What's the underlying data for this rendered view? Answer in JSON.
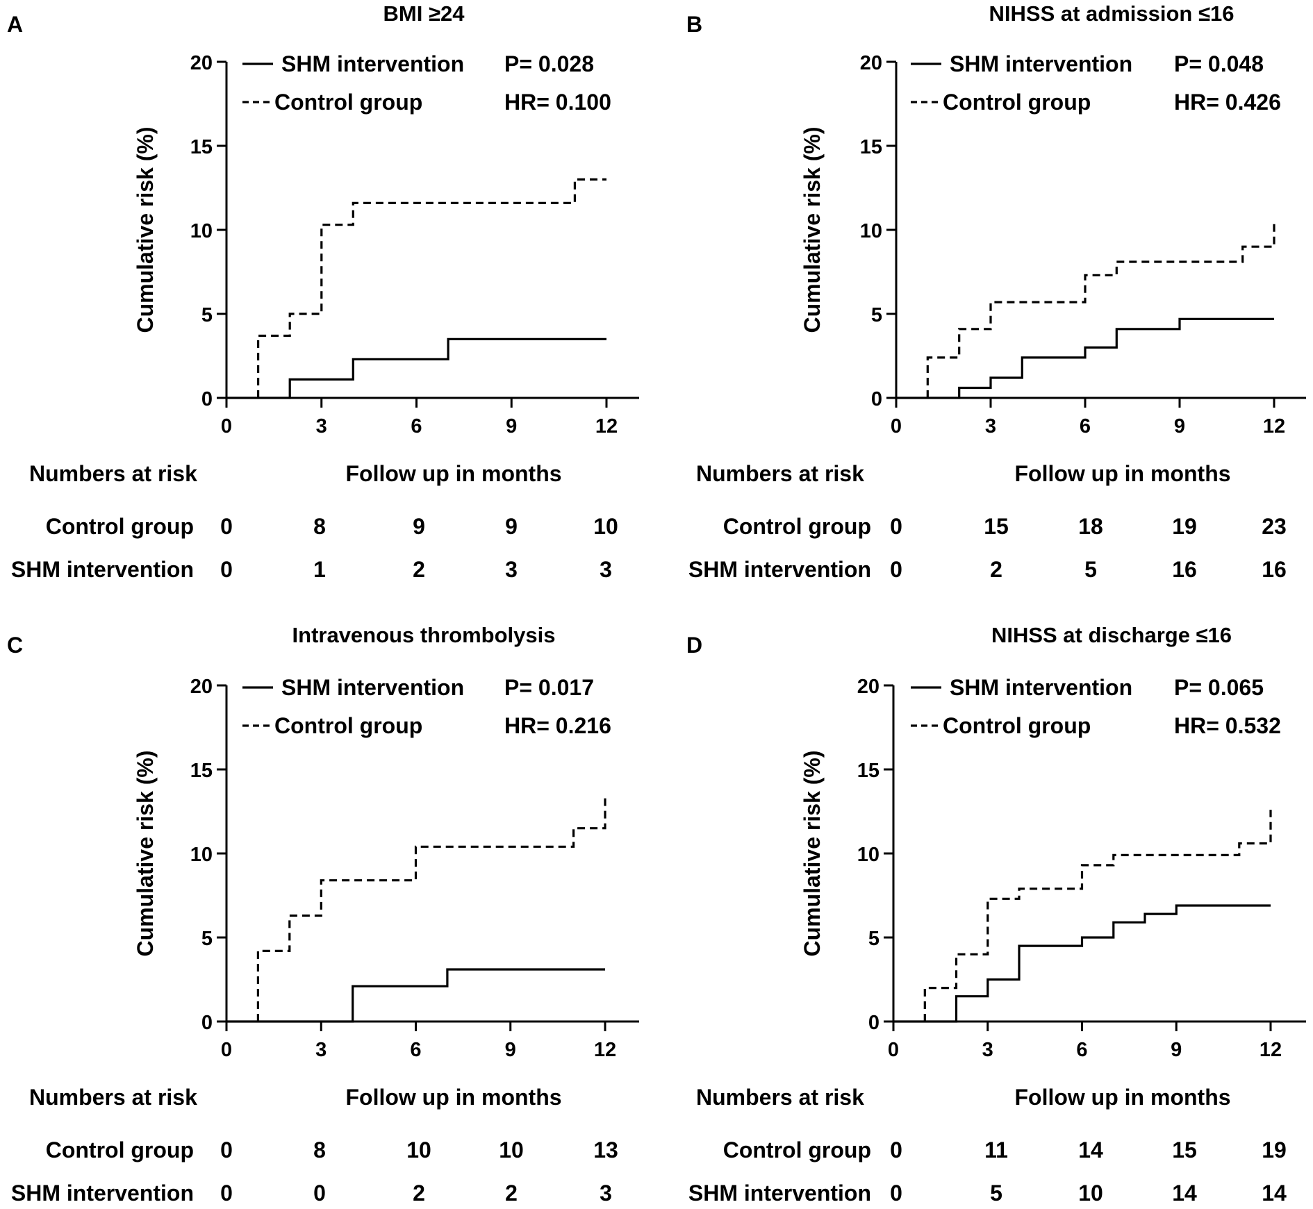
{
  "chart_data": [
    {
      "type": "line",
      "panel_label": "A",
      "title": "BMI ≥24",
      "xlabel": "Follow up in months",
      "ylabel": "Cumulative risk (%)",
      "xlim": [
        0,
        12
      ],
      "ylim": [
        0,
        20
      ],
      "x_ticks": [
        "0",
        "3",
        "6",
        "9",
        "12"
      ],
      "y_ticks": [
        "0",
        "5",
        "10",
        "15",
        "20"
      ],
      "legend": {
        "solid": "SHM intervention",
        "dashed": "Control group"
      },
      "stats": {
        "p": "P= 0.028",
        "hr": "HR= 0.100"
      },
      "series": [
        {
          "name": "SHM intervention",
          "style": "solid",
          "x": [
            0,
            2,
            2,
            4,
            4,
            7,
            7,
            12
          ],
          "y": [
            0,
            0,
            1.1,
            1.1,
            2.3,
            2.3,
            3.5,
            3.5
          ]
        },
        {
          "name": "Control group",
          "style": "dashed",
          "x": [
            1,
            1,
            2,
            2,
            3,
            3,
            4,
            4,
            11,
            11,
            12
          ],
          "y": [
            0,
            3.7,
            3.7,
            5.0,
            5.0,
            10.3,
            10.3,
            11.6,
            11.6,
            13.0,
            13.0
          ]
        }
      ],
      "risk_table": {
        "header_left": "Numbers at risk",
        "header_right": "Follow up in months",
        "rows": [
          {
            "label": "Control group",
            "values": [
              "0",
              "8",
              "9",
              "9",
              "10"
            ]
          },
          {
            "label": "SHM intervention",
            "values": [
              "0",
              "1",
              "2",
              "3",
              "3"
            ]
          }
        ]
      }
    },
    {
      "type": "line",
      "panel_label": "B",
      "title": "NIHSS at admission ≤16",
      "xlabel": "Follow up in months",
      "ylabel": "Cumulative risk (%)",
      "xlim": [
        0,
        12
      ],
      "ylim": [
        0,
        20
      ],
      "x_ticks": [
        "0",
        "3",
        "6",
        "9",
        "12"
      ],
      "y_ticks": [
        "0",
        "5",
        "10",
        "15",
        "20"
      ],
      "legend": {
        "solid": "SHM intervention",
        "dashed": "Control group"
      },
      "stats": {
        "p": "P= 0.048",
        "hr": "HR= 0.426"
      },
      "series": [
        {
          "name": "SHM intervention",
          "style": "solid",
          "x": [
            0,
            2,
            2,
            3,
            3,
            4,
            4,
            6,
            6,
            7,
            7,
            9,
            9,
            12
          ],
          "y": [
            0,
            0,
            0.6,
            0.6,
            1.2,
            1.2,
            2.4,
            2.4,
            3.0,
            3.0,
            4.1,
            4.1,
            4.7,
            4.7
          ]
        },
        {
          "name": "Control group",
          "style": "dashed",
          "x": [
            1,
            1,
            2,
            2,
            3,
            3,
            6,
            6,
            7,
            7,
            11,
            11,
            12,
            12
          ],
          "y": [
            0,
            2.4,
            2.4,
            4.1,
            4.1,
            5.7,
            5.7,
            7.3,
            7.3,
            8.1,
            8.1,
            9.0,
            9.0,
            10.6
          ]
        }
      ],
      "risk_table": {
        "header_left": "Numbers at risk",
        "header_right": "Follow up in months",
        "rows": [
          {
            "label": "Control group",
            "values": [
              "0",
              "15",
              "18",
              "19",
              "23"
            ]
          },
          {
            "label": "SHM intervention",
            "values": [
              "0",
              "2",
              "5",
              "16",
              "16"
            ]
          }
        ]
      }
    },
    {
      "type": "line",
      "panel_label": "C",
      "title": "Intravenous thrombolysis",
      "xlabel": "Follow up in months",
      "ylabel": "Cumulative risk (%)",
      "xlim": [
        0,
        12
      ],
      "ylim": [
        0,
        20
      ],
      "x_ticks": [
        "0",
        "3",
        "6",
        "9",
        "12"
      ],
      "y_ticks": [
        "0",
        "5",
        "10",
        "15",
        "20"
      ],
      "legend": {
        "solid": "SHM intervention",
        "dashed": "Control group"
      },
      "stats": {
        "p": "P= 0.017",
        "hr": "HR= 0.216"
      },
      "series": [
        {
          "name": "SHM intervention",
          "style": "solid",
          "x": [
            0,
            4,
            4,
            7,
            7,
            12
          ],
          "y": [
            0,
            0,
            2.1,
            2.1,
            3.1,
            3.1
          ]
        },
        {
          "name": "Control group",
          "style": "dashed",
          "x": [
            1,
            1,
            2,
            2,
            3,
            3,
            6,
            6,
            11,
            11,
            12,
            12
          ],
          "y": [
            0,
            4.2,
            4.2,
            6.3,
            6.3,
            8.4,
            8.4,
            10.4,
            10.4,
            11.5,
            11.5,
            13.5
          ]
        }
      ],
      "risk_table": {
        "header_left": "Numbers at risk",
        "header_right": "Follow up in months",
        "rows": [
          {
            "label": "Control group",
            "values": [
              "0",
              "8",
              "10",
              "10",
              "13"
            ]
          },
          {
            "label": "SHM intervention",
            "values": [
              "0",
              "0",
              "2",
              "2",
              "3"
            ]
          }
        ]
      }
    },
    {
      "type": "line",
      "panel_label": "D",
      "title": "NIHSS at discharge  ≤16",
      "xlabel": "Follow up in months",
      "ylabel": "Cumulative risk (%)",
      "xlim": [
        0,
        12
      ],
      "ylim": [
        0,
        20
      ],
      "x_ticks": [
        "0",
        "3",
        "6",
        "9",
        "12"
      ],
      "y_ticks": [
        "0",
        "5",
        "10",
        "15",
        "20"
      ],
      "legend": {
        "solid": "SHM intervention",
        "dashed": "Control group"
      },
      "stats": {
        "p": "P= 0.065",
        "hr": "HR= 0.532"
      },
      "series": [
        {
          "name": "SHM intervention",
          "style": "solid",
          "x": [
            0,
            2,
            2,
            3,
            3,
            4,
            4,
            6,
            6,
            7,
            7,
            8,
            8,
            9,
            9,
            12
          ],
          "y": [
            0,
            0,
            1.5,
            1.5,
            2.5,
            2.5,
            4.5,
            4.5,
            5.0,
            5.0,
            5.9,
            5.9,
            6.4,
            6.4,
            6.9,
            6.9
          ]
        },
        {
          "name": "Control group",
          "style": "dashed",
          "x": [
            1,
            1,
            2,
            2,
            3,
            3,
            4,
            4,
            6,
            6,
            7,
            7,
            11,
            11,
            12,
            12
          ],
          "y": [
            0,
            2.0,
            2.0,
            4.0,
            4.0,
            7.3,
            7.3,
            7.9,
            7.9,
            9.3,
            9.3,
            9.9,
            9.9,
            10.6,
            10.6,
            12.6
          ]
        }
      ],
      "risk_table": {
        "header_left": "Numbers at risk",
        "header_right": "Follow up in months",
        "rows": [
          {
            "label": "Control group",
            "values": [
              "0",
              "11",
              "14",
              "15",
              "19"
            ]
          },
          {
            "label": "SHM intervention",
            "values": [
              "0",
              "5",
              "10",
              "14",
              "14"
            ]
          }
        ]
      }
    }
  ]
}
